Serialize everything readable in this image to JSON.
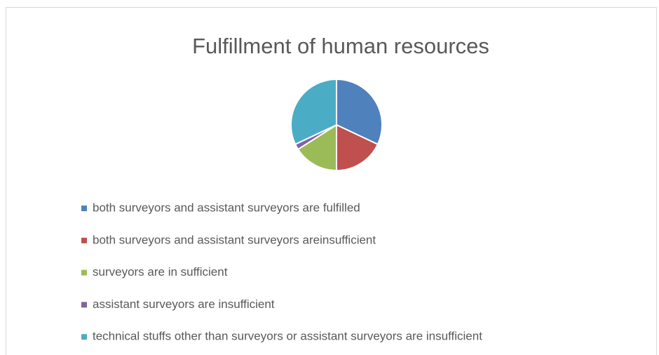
{
  "chart_data": {
    "type": "pie",
    "title": "Fulfillment of human resources",
    "categories": [
      "both surveyors and assistant surveyors are fulfilled",
      "both surveyors and assistant surveyors areinsufficient",
      "surveyors are in sufficient",
      "assistant surveyors are insufficient",
      "technical stuffs other than surveyors or assistant surveyors are insufficient"
    ],
    "values": [
      32,
      18,
      16,
      2,
      32
    ],
    "colors": [
      "#4f81bd",
      "#c0504d",
      "#9bbb59",
      "#8064a2",
      "#4bacc6"
    ],
    "legend": "bottom"
  }
}
